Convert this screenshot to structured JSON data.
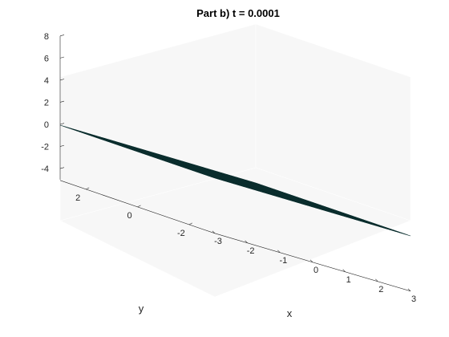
{
  "chart_data": {
    "type": "surface",
    "title": "Part b) t = 0.0001",
    "xlabel": "x",
    "ylabel": "y",
    "zlabel": "",
    "xlim": [
      -3,
      3
    ],
    "ylim": [
      -3,
      3
    ],
    "zlim": [
      -5,
      8
    ],
    "x_ticks": [
      "-3",
      "-2",
      "-1",
      "0",
      "1",
      "2",
      "3"
    ],
    "y_ticks": [
      "-2",
      "0",
      "2"
    ],
    "z_ticks": [
      "-4",
      "-2",
      "0",
      "2",
      "4",
      "6",
      "8"
    ],
    "surface_value": 0,
    "grid_resolution": 40,
    "colors": {
      "surface_fill": "#2a8f8f",
      "mesh_lines": "#0b2e2e",
      "back_panes": "#f7f7f7",
      "axis": "#262626"
    }
  }
}
